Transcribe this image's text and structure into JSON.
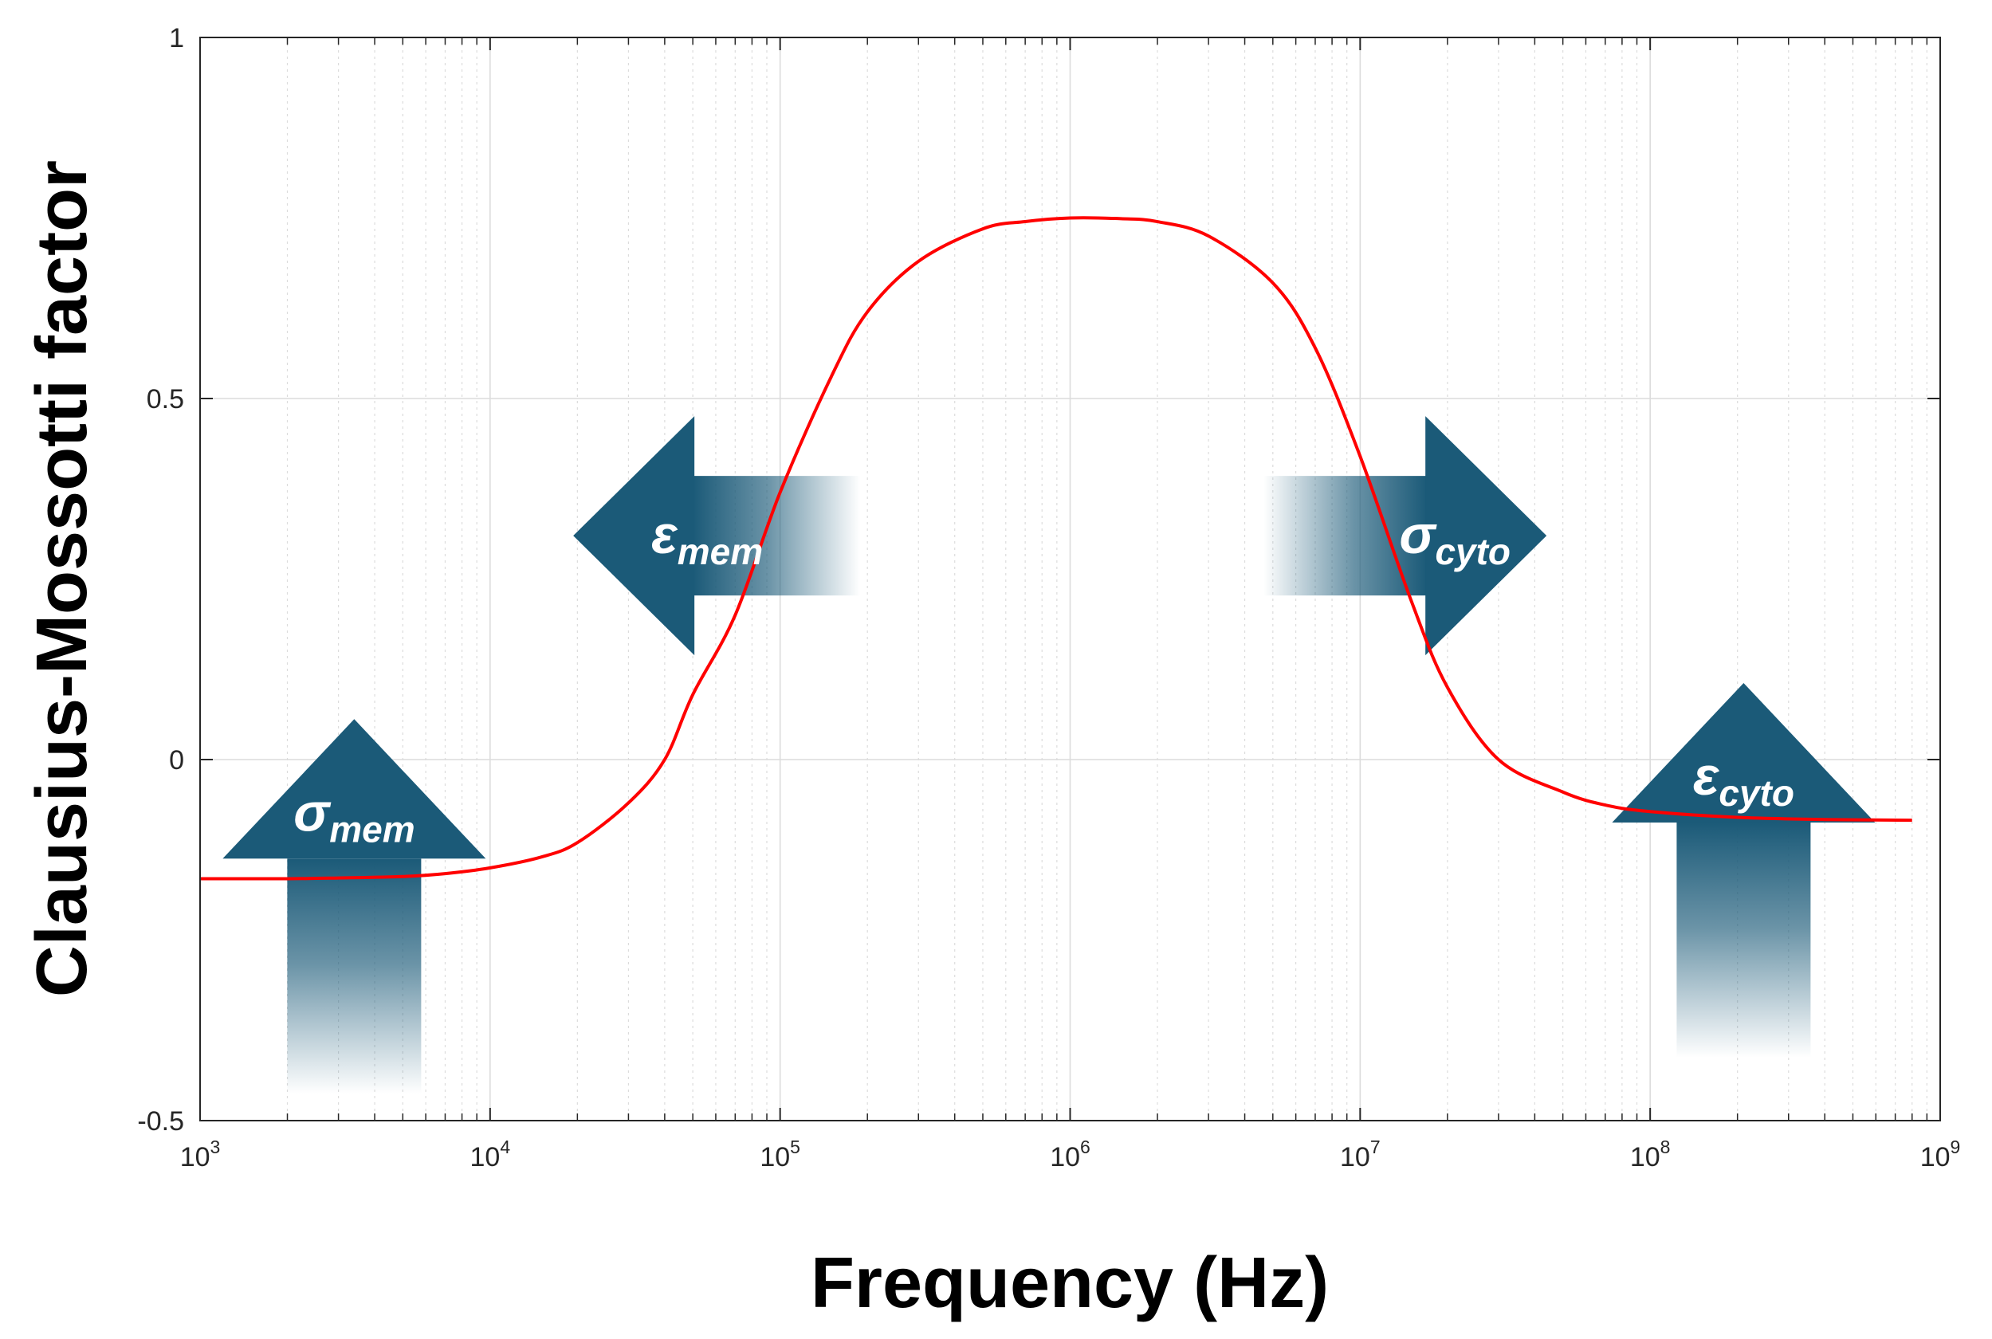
{
  "chart_data": {
    "type": "line",
    "title": "",
    "xlabel": "Frequency (Hz)",
    "ylabel": "Clausius-Mossotti factor",
    "x_scale": "log",
    "xlim": [
      1000,
      1000000000
    ],
    "ylim": [
      -0.5,
      1
    ],
    "grid": true,
    "xticks": [
      {
        "value": 1000,
        "base": "10",
        "exp": "3"
      },
      {
        "value": 10000,
        "base": "10",
        "exp": "4"
      },
      {
        "value": 100000,
        "base": "10",
        "exp": "5"
      },
      {
        "value": 1000000,
        "base": "10",
        "exp": "6"
      },
      {
        "value": 10000000,
        "base": "10",
        "exp": "7"
      },
      {
        "value": 100000000,
        "base": "10",
        "exp": "8"
      },
      {
        "value": 1000000000,
        "base": "10",
        "exp": "9"
      }
    ],
    "yticks": [
      {
        "value": 1,
        "label": "1"
      },
      {
        "value": 0.5,
        "label": "0.5"
      },
      {
        "value": 0,
        "label": "0"
      },
      {
        "value": -0.5,
        "label": "-0.5"
      }
    ],
    "series": [
      {
        "color": "#ff0000",
        "x": [
          1000,
          2000,
          3000,
          5000,
          7000,
          10000,
          15000,
          20000,
          30000,
          40000,
          50000,
          70000,
          100000,
          150000,
          200000,
          300000,
          500000,
          700000,
          1000000,
          1500000,
          2000000,
          3000000,
          5000000,
          7000000,
          10000000,
          15000000,
          20000000,
          30000000,
          50000000,
          70000000,
          100000000,
          200000000,
          400000000,
          800000000
        ],
        "y": [
          -0.165,
          -0.165,
          -0.164,
          -0.162,
          -0.158,
          -0.15,
          -0.135,
          -0.115,
          -0.06,
          0.0,
          0.09,
          0.2,
          0.37,
          0.53,
          0.62,
          0.69,
          0.735,
          0.745,
          0.75,
          0.749,
          0.745,
          0.725,
          0.66,
          0.57,
          0.42,
          0.22,
          0.1,
          0.0,
          -0.045,
          -0.063,
          -0.072,
          -0.08,
          -0.083,
          -0.084
        ]
      }
    ],
    "annotations": [
      {
        "symbol": "σ",
        "subscript": "mem",
        "direction": "up",
        "x": 3400,
        "y": -0.3
      },
      {
        "symbol": "ε",
        "subscript": "mem",
        "direction": "left",
        "x": 50000,
        "y": 0.31
      },
      {
        "symbol": "σ",
        "subscript": "cyto",
        "direction": "right",
        "x": 17000000,
        "y": 0.31
      },
      {
        "symbol": "ε",
        "subscript": "cyto",
        "direction": "up",
        "x": 210000000,
        "y": -0.25
      }
    ],
    "colors": {
      "curve": "#ff0000",
      "arrow": "#1b5a78",
      "grid": "#dcdcdc",
      "axis": "#262626"
    }
  }
}
